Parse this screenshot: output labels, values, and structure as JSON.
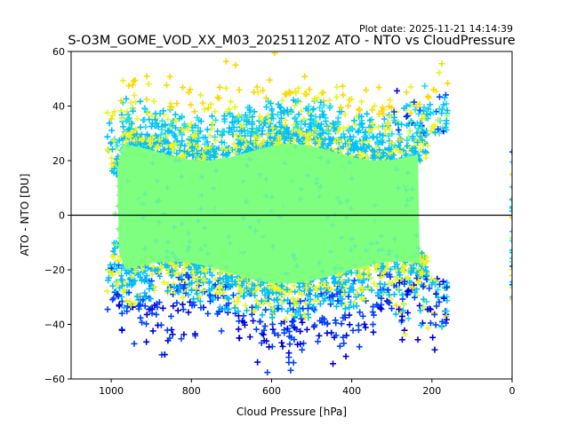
{
  "chart_data": {
    "type": "scatter",
    "title": "S-O3M_GOME_VOD_XX_M03_20251120Z ATO - NTO vs CloudPressure",
    "plot_date": "Plot date: 2025-11-21 14:14:39",
    "xlabel": "Cloud Pressure [hPa]",
    "ylabel": "ATO - NTO [DU]",
    "xlim": [
      1100,
      0
    ],
    "ylim": [
      -60,
      60
    ],
    "xticks": [
      1000,
      800,
      600,
      400,
      200,
      0
    ],
    "xtick_labels": [
      "1000",
      "800",
      "600",
      "400",
      "200",
      "0"
    ],
    "yticks": [
      60,
      40,
      20,
      0,
      -20,
      -40,
      -60
    ],
    "ytick_labels": [
      "60",
      "40",
      "20",
      "0",
      "−20",
      "−40",
      "−60"
    ],
    "reference_line": {
      "y": 0,
      "color": "#000000"
    },
    "marker": "+",
    "colormap": "jet",
    "grid": false,
    "legend": "none",
    "point_cloud": {
      "description": "dense cloud of points colored by density (jet colormap)",
      "x_range_main": [
        1000,
        150
      ],
      "y_core_range": [
        -25,
        30
      ],
      "y_extreme_range": [
        -60,
        58
      ],
      "extra_column_x": 0,
      "extra_column_y_range": [
        -32,
        25
      ],
      "colors": {
        "core": "#7fff7f",
        "mid": "#00bfff",
        "outer_cyan": "#22ddee",
        "yellow": "#e8f51e",
        "gold": "#ffd700",
        "blue": "#0040ff",
        "dark_blue": "#0000dd",
        "light_green": "#a8ff50"
      }
    }
  }
}
